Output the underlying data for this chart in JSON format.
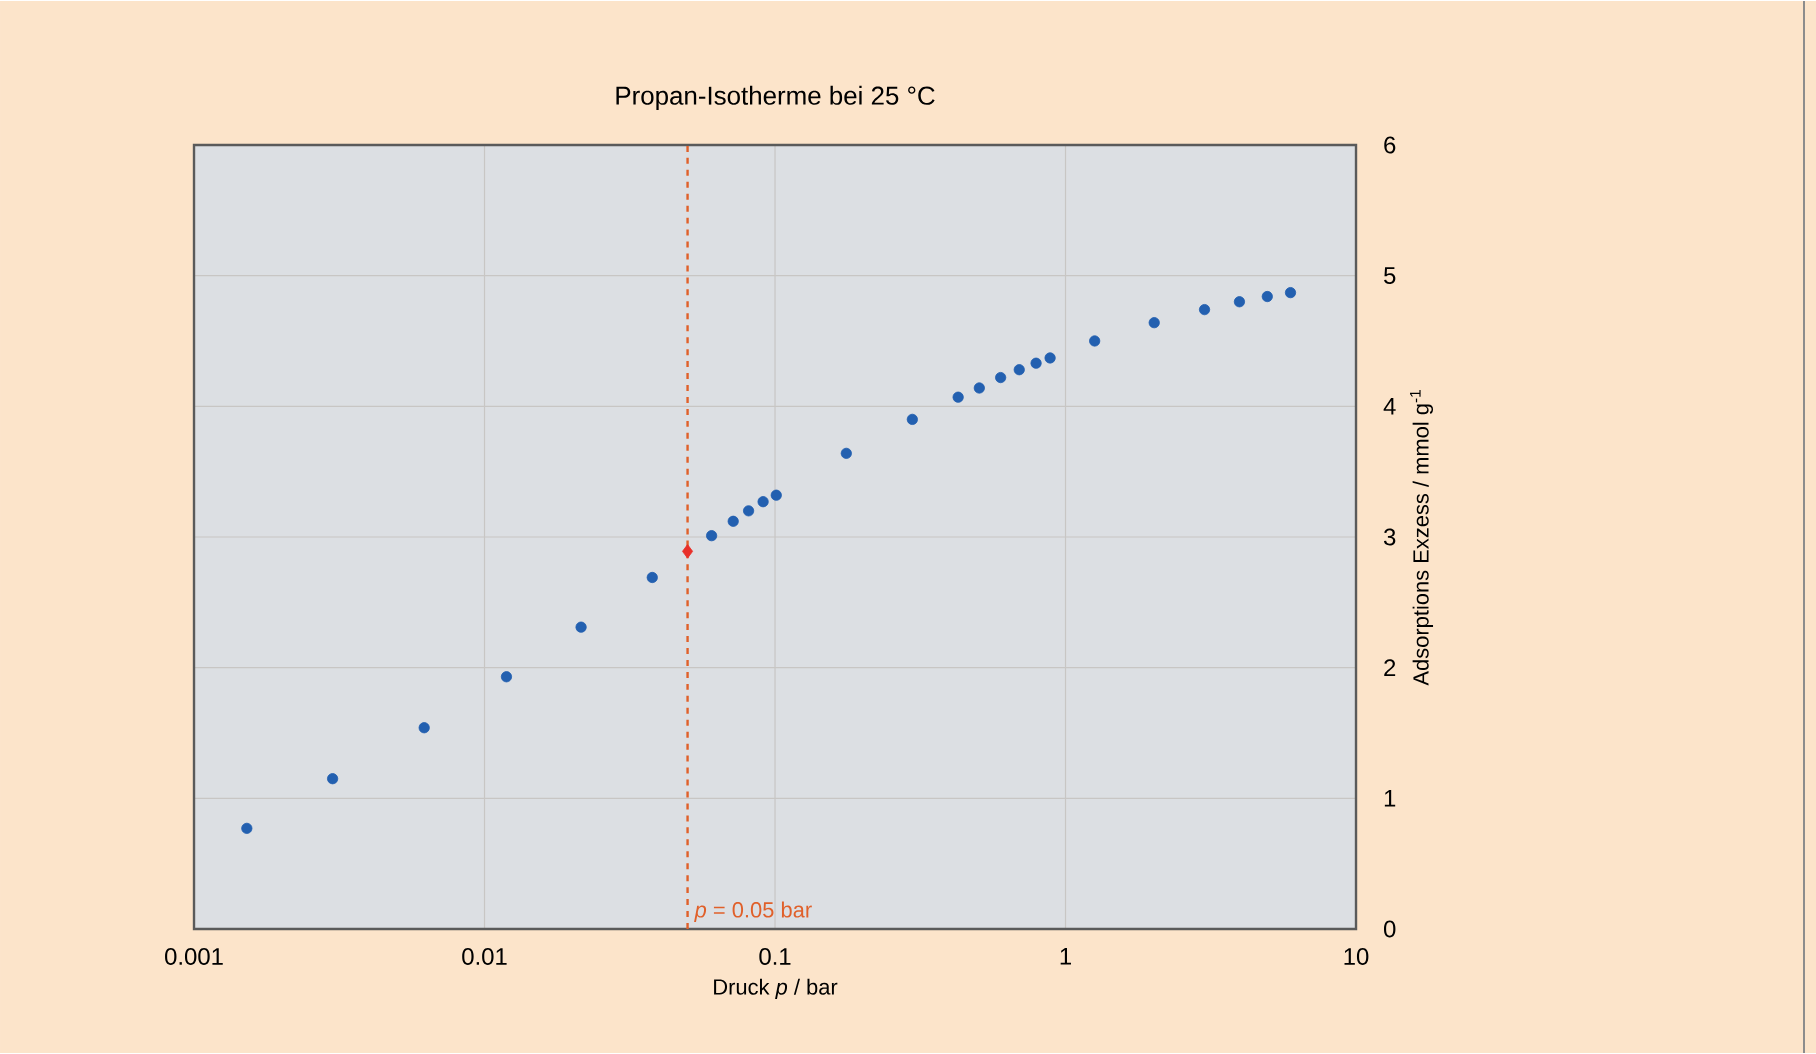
{
  "chart_data": {
    "type": "scatter",
    "title": "Propan-Isotherme bei 25 °C",
    "xlabel": "Druck *p* / bar",
    "ylabel": "Adsorptions Exzess / mmol g$^{-1}$",
    "log": "x",
    "xlim": [
      0.001,
      10
    ],
    "ylim": [
      0,
      6
    ],
    "xticks": [
      0.001,
      0.01,
      0.1,
      1,
      10
    ],
    "yticks": [
      0,
      1,
      2,
      3,
      4,
      5,
      6
    ],
    "grid": true,
    "ref_lines": [
      {
        "axis": "x",
        "value": 0.05,
        "label": "*p* = 0.05 bar",
        "color": "#e0602a",
        "line_style": "dashed"
      }
    ],
    "series": [
      {
        "color": "#e8302a",
        "marker": "diamond",
        "x": [
          0.05
        ],
        "values": [
          2.89
        ]
      },
      {
        "color": "#2360b0",
        "marker": "circle",
        "x": [
          0.00152,
          0.003,
          0.0062,
          0.0119,
          0.0215,
          0.0378,
          0.0605,
          0.0718,
          0.0811,
          0.091,
          0.101,
          0.176,
          0.297,
          0.427,
          0.505,
          0.598,
          0.693,
          0.792,
          0.885,
          1.26,
          2.02,
          3.01,
          3.97,
          4.95,
          5.95
        ],
        "values": [
          0.77,
          1.15,
          1.54,
          1.93,
          2.31,
          2.69,
          3.01,
          3.12,
          3.2,
          3.27,
          3.32,
          3.64,
          3.9,
          4.07,
          4.14,
          4.22,
          4.28,
          4.33,
          4.37,
          4.5,
          4.64,
          4.74,
          4.8,
          4.84,
          4.87
        ]
      }
    ]
  }
}
